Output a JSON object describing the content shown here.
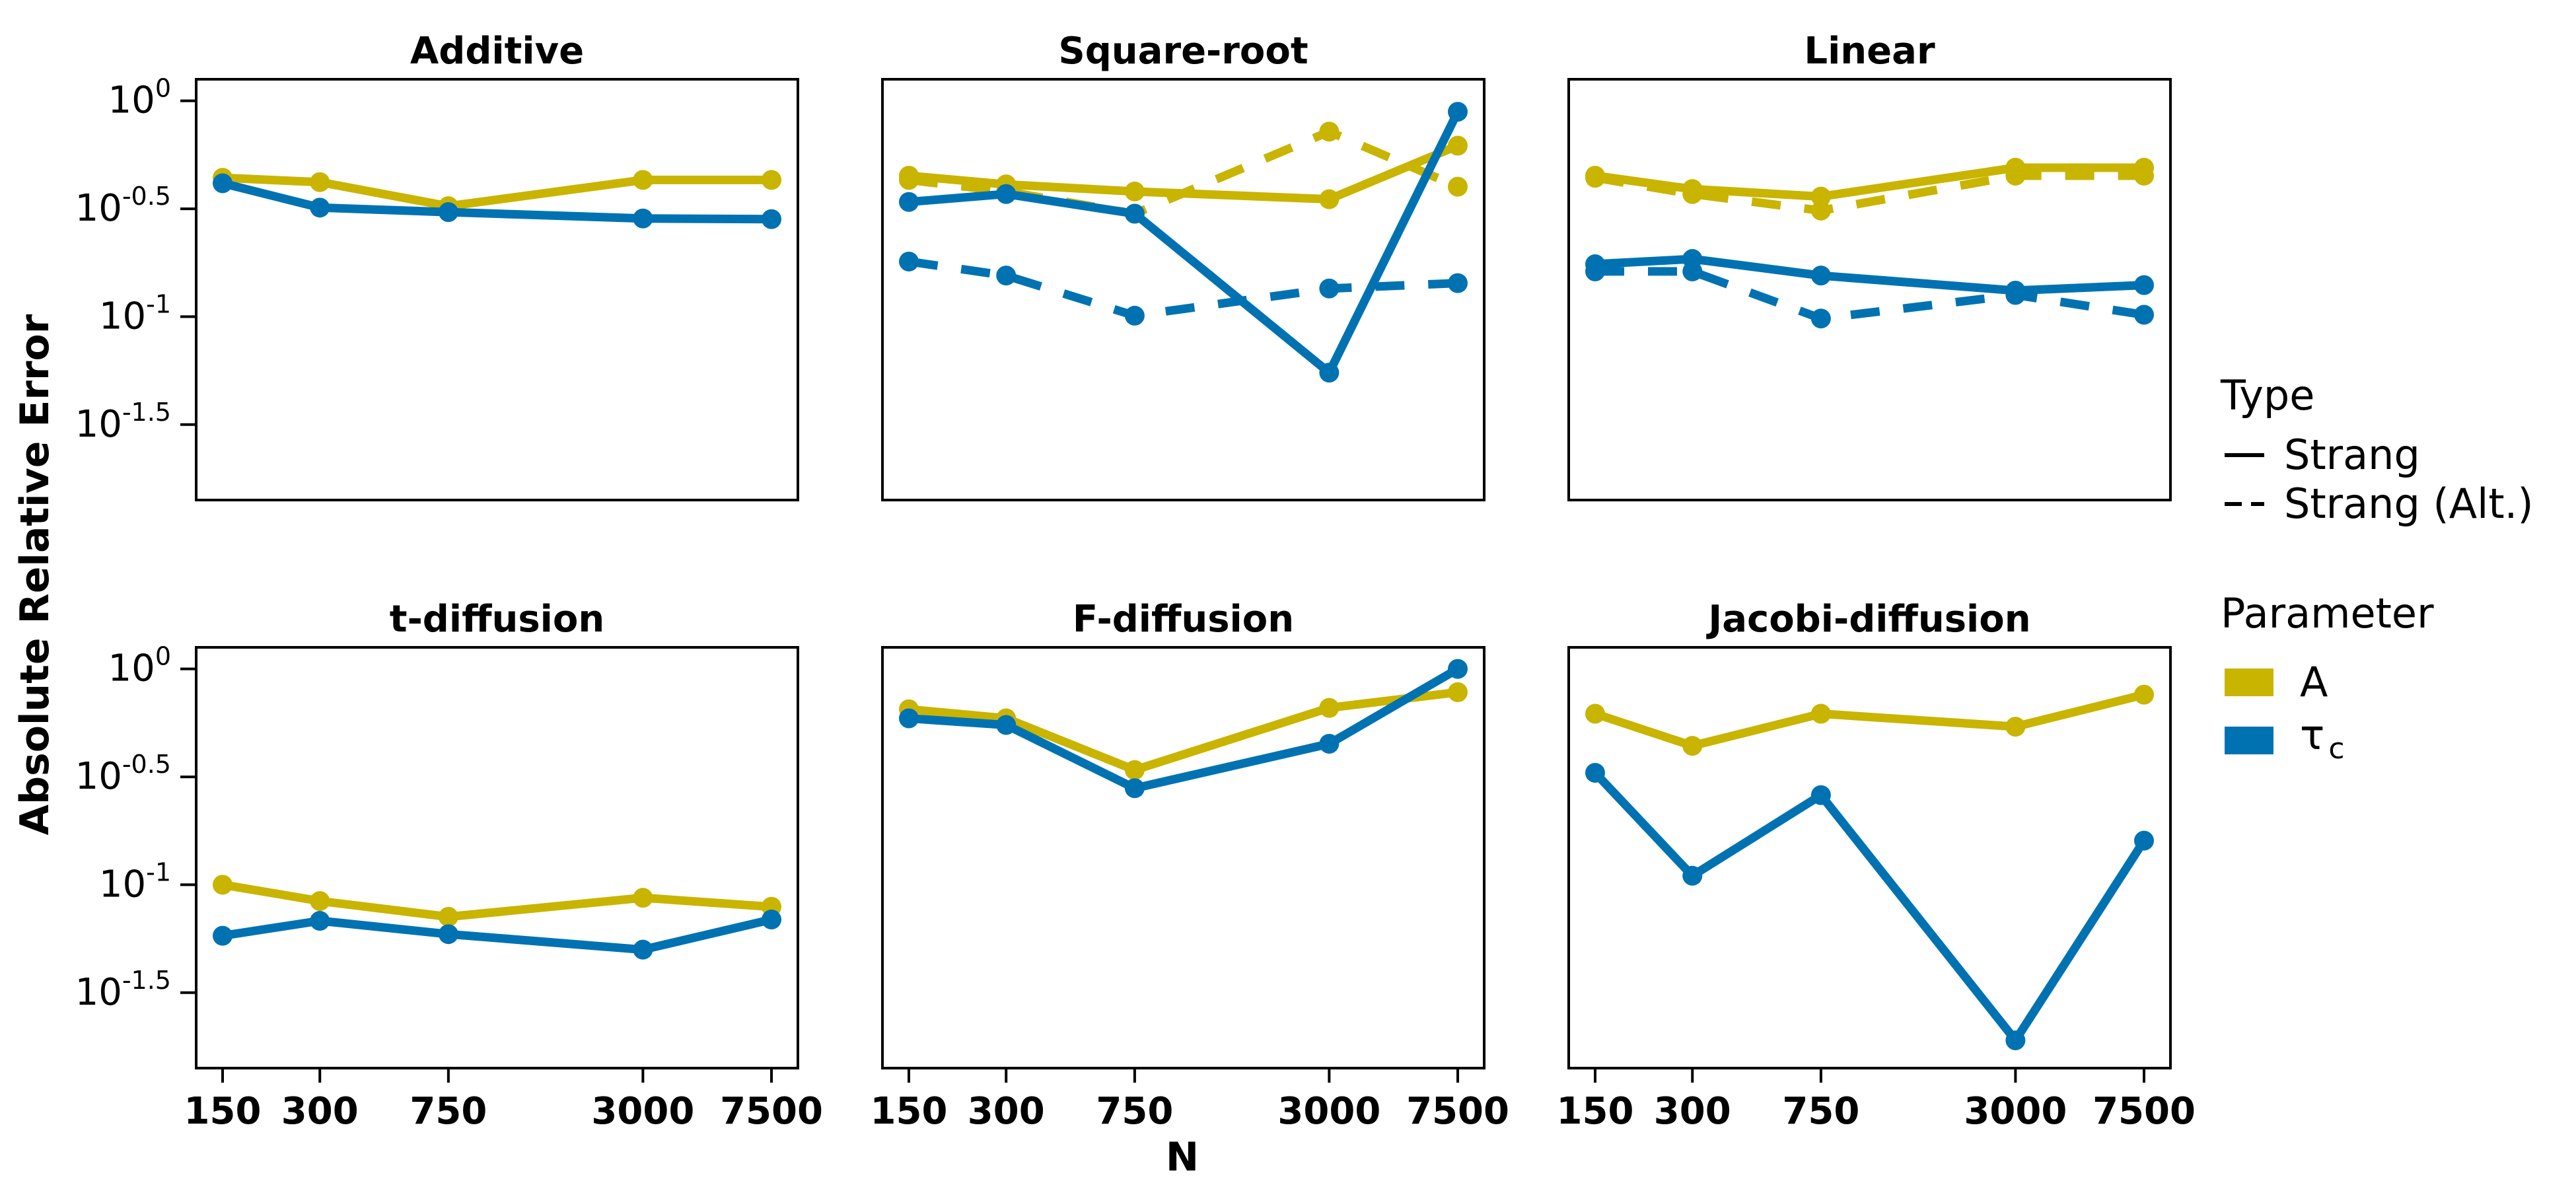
{
  "chart_data": {
    "type": "line",
    "ylabel": "Absolute Relative Error",
    "xlabel": "N",
    "x": [
      150,
      300,
      750,
      3000,
      7500
    ],
    "x_tick_labels": [
      "150",
      "300",
      "750",
      "3000",
      "7500"
    ],
    "xscale": "log",
    "yscale": "log",
    "ylim_log10": [
      -1.85,
      0.1
    ],
    "y_ticks": [
      {
        "base": "10",
        "exp": "0",
        "value": 1
      },
      {
        "base": "10",
        "exp": "-0.5",
        "value": 0.316
      },
      {
        "base": "10",
        "exp": "-1",
        "value": 0.1
      },
      {
        "base": "10",
        "exp": "-1.5",
        "value": 0.0316
      }
    ],
    "legend": {
      "type_title": "Type",
      "types": [
        {
          "label": "Strang",
          "dash": "solid"
        },
        {
          "label": "Strang (Alt.)",
          "dash": "dashed"
        }
      ],
      "param_title": "Parameter",
      "params": [
        {
          "label": "A",
          "color": "#C9B400"
        },
        {
          "label": "τ",
          "sub": "c",
          "color": "#0072B2"
        }
      ]
    },
    "panels": [
      {
        "title": "Additive",
        "show_y_ticks": true,
        "series": [
          {
            "param": "A",
            "type": "Strang",
            "values": [
              0.44,
              0.42,
              0.325,
              0.43,
              0.43
            ]
          },
          {
            "param": "τc",
            "type": "Strang",
            "values": [
              0.415,
              0.32,
              0.305,
              0.285,
              0.283
            ]
          }
        ]
      },
      {
        "title": "Square-root",
        "show_y_ticks": false,
        "series": [
          {
            "param": "A",
            "type": "Strang",
            "values": [
              0.45,
              0.41,
              0.38,
              0.35,
              0.62
            ]
          },
          {
            "param": "A",
            "type": "Strang (Alt.)",
            "values": [
              0.43,
              0.38,
              0.3,
              0.72,
              0.4
            ]
          },
          {
            "param": "τc",
            "type": "Strang",
            "values": [
              0.34,
              0.37,
              0.3,
              0.055,
              0.89
            ]
          },
          {
            "param": "τc",
            "type": "Strang (Alt.)",
            "values": [
              0.18,
              0.155,
              0.101,
              0.135,
              0.143
            ]
          }
        ]
      },
      {
        "title": "Linear",
        "show_y_ticks": false,
        "series": [
          {
            "param": "A",
            "type": "Strang",
            "values": [
              0.45,
              0.39,
              0.36,
              0.49,
              0.49
            ]
          },
          {
            "param": "A",
            "type": "Strang (Alt.)",
            "values": [
              0.44,
              0.37,
              0.31,
              0.45,
              0.45
            ]
          },
          {
            "param": "τc",
            "type": "Strang",
            "values": [
              0.175,
              0.185,
              0.155,
              0.132,
              0.14
            ]
          },
          {
            "param": "τc",
            "type": "Strang (Alt.)",
            "values": [
              0.162,
              0.162,
              0.098,
              0.126,
              0.102
            ]
          }
        ]
      },
      {
        "title": "t-diffusion",
        "show_y_ticks": true,
        "series": [
          {
            "param": "A",
            "type": "Strang",
            "values": [
              0.1,
              0.084,
              0.071,
              0.087,
              0.079
            ]
          },
          {
            "param": "τc",
            "type": "Strang",
            "values": [
              0.058,
              0.068,
              0.059,
              0.05,
              0.069
            ]
          }
        ]
      },
      {
        "title": "F-diffusion",
        "show_y_ticks": false,
        "series": [
          {
            "param": "A",
            "type": "Strang",
            "values": [
              0.65,
              0.59,
              0.34,
              0.66,
              0.78
            ]
          },
          {
            "param": "τc",
            "type": "Strang",
            "values": [
              0.59,
              0.55,
              0.28,
              0.45,
              1.0
            ]
          }
        ]
      },
      {
        "title": "Jacobi-diffusion",
        "show_y_ticks": false,
        "series": [
          {
            "param": "A",
            "type": "Strang",
            "values": [
              0.62,
              0.44,
              0.62,
              0.54,
              0.76
            ]
          },
          {
            "param": "τc",
            "type": "Strang",
            "values": [
              0.33,
              0.11,
              0.26,
              0.019,
              0.16
            ]
          }
        ]
      }
    ]
  }
}
